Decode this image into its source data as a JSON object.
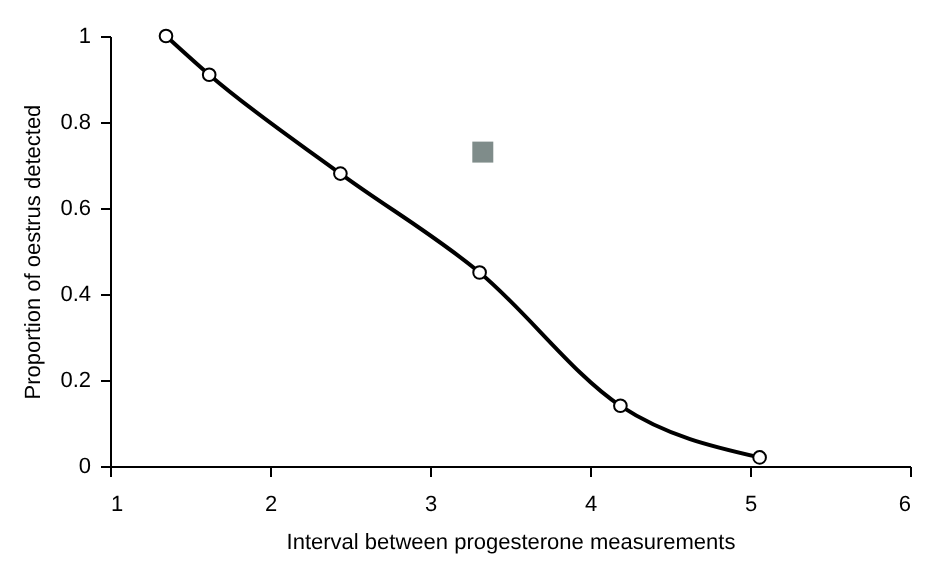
{
  "chart_data": {
    "type": "line",
    "xlabel": "Interval between progesterone measurements",
    "ylabel": "Proportion of oestrus detected",
    "xlim": [
      1,
      6
    ],
    "xticks": [
      1,
      2,
      3,
      4,
      5,
      6
    ],
    "ylim": [
      0,
      1
    ],
    "yticks": [
      0,
      0.2,
      0.4,
      0.6,
      0.8,
      1
    ],
    "grid": false,
    "series": [
      {
        "color": "#000000",
        "marker": "circle",
        "line_style": "solid",
        "x": [
          1.35,
          1.62,
          2.44,
          3.31,
          4.19,
          5.06
        ],
        "values": [
          1,
          0.91,
          0.68,
          0.45,
          0.14,
          0.02
        ]
      },
      {
        "type": "scatter",
        "color": "#7f8c8a",
        "marker": "square",
        "x": [
          3.33
        ],
        "values": [
          0.73
        ]
      }
    ]
  }
}
